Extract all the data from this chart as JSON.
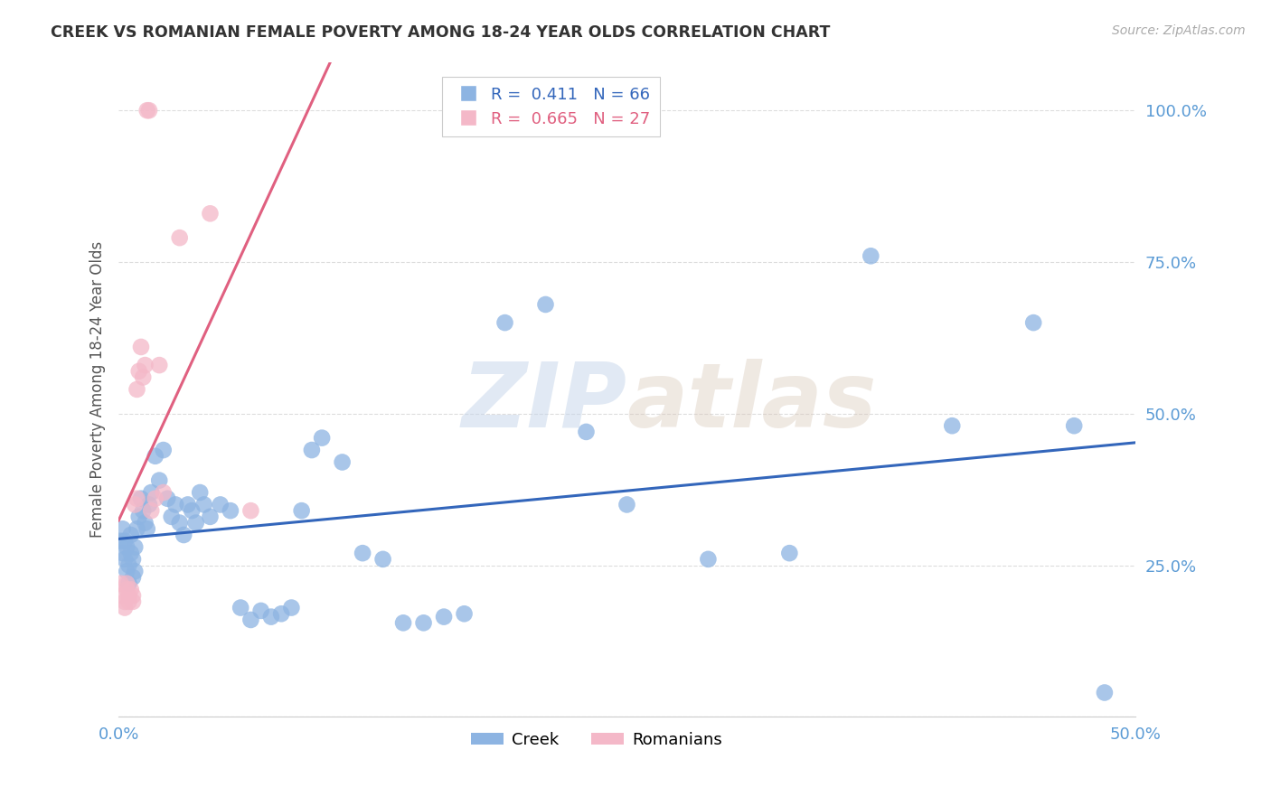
{
  "title": "CREEK VS ROMANIAN FEMALE POVERTY AMONG 18-24 YEAR OLDS CORRELATION CHART",
  "source": "Source: ZipAtlas.com",
  "ylabel": "Female Poverty Among 18-24 Year Olds",
  "xlim": [
    0.0,
    0.5
  ],
  "ylim": [
    0.0,
    1.08
  ],
  "creek_R": "0.411",
  "creek_N": "66",
  "romanian_R": "0.665",
  "romanian_N": "27",
  "creek_color": "#8db4e2",
  "romanian_color": "#f4b8c8",
  "creek_line_color": "#3366bb",
  "romanian_line_color": "#e06080",
  "legend_label_creek": "Creek",
  "legend_label_romanian": "Romanians",
  "watermark_zip": "ZIP",
  "watermark_atlas": "atlas",
  "background_color": "#ffffff",
  "grid_color": "#dddddd",
  "tick_color": "#5b9bd5",
  "creek_x": [
    0.001,
    0.002,
    0.002,
    0.003,
    0.003,
    0.004,
    0.004,
    0.005,
    0.005,
    0.006,
    0.006,
    0.007,
    0.007,
    0.008,
    0.008,
    0.009,
    0.01,
    0.011,
    0.012,
    0.013,
    0.014,
    0.015,
    0.016,
    0.018,
    0.02,
    0.022,
    0.024,
    0.026,
    0.028,
    0.03,
    0.032,
    0.034,
    0.036,
    0.038,
    0.04,
    0.042,
    0.045,
    0.05,
    0.055,
    0.06,
    0.065,
    0.07,
    0.075,
    0.08,
    0.085,
    0.09,
    0.095,
    0.1,
    0.11,
    0.12,
    0.13,
    0.14,
    0.15,
    0.16,
    0.17,
    0.19,
    0.21,
    0.23,
    0.25,
    0.29,
    0.33,
    0.37,
    0.41,
    0.45,
    0.47,
    0.485
  ],
  "creek_y": [
    0.29,
    0.27,
    0.31,
    0.26,
    0.29,
    0.24,
    0.28,
    0.22,
    0.25,
    0.27,
    0.3,
    0.23,
    0.26,
    0.24,
    0.28,
    0.31,
    0.33,
    0.36,
    0.34,
    0.32,
    0.31,
    0.35,
    0.37,
    0.43,
    0.39,
    0.44,
    0.36,
    0.33,
    0.35,
    0.32,
    0.3,
    0.35,
    0.34,
    0.32,
    0.37,
    0.35,
    0.33,
    0.35,
    0.34,
    0.18,
    0.16,
    0.175,
    0.165,
    0.17,
    0.18,
    0.34,
    0.44,
    0.46,
    0.42,
    0.27,
    0.26,
    0.155,
    0.155,
    0.165,
    0.17,
    0.65,
    0.68,
    0.47,
    0.35,
    0.26,
    0.27,
    0.76,
    0.48,
    0.65,
    0.48,
    0.04
  ],
  "romanian_x": [
    0.001,
    0.002,
    0.003,
    0.003,
    0.004,
    0.004,
    0.005,
    0.005,
    0.006,
    0.007,
    0.007,
    0.008,
    0.009,
    0.009,
    0.01,
    0.011,
    0.012,
    0.013,
    0.014,
    0.015,
    0.016,
    0.018,
    0.02,
    0.022,
    0.03,
    0.045,
    0.065
  ],
  "romanian_y": [
    0.22,
    0.2,
    0.18,
    0.19,
    0.21,
    0.22,
    0.19,
    0.2,
    0.21,
    0.19,
    0.2,
    0.35,
    0.36,
    0.54,
    0.57,
    0.61,
    0.56,
    0.58,
    1.0,
    1.0,
    0.34,
    0.36,
    0.58,
    0.37,
    0.79,
    0.83,
    0.34
  ]
}
